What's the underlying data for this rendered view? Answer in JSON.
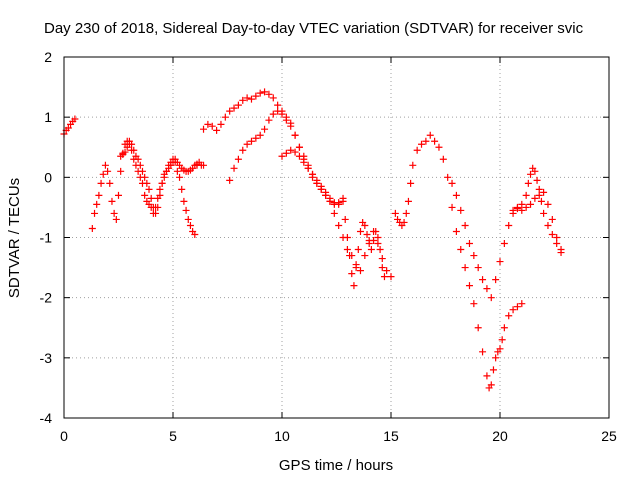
{
  "chart_data": {
    "type": "scatter",
    "title": "Day 230 of 2018, Sidereal Day-to-day VTEC variation (SDTVAR) for receiver svic",
    "xlabel": "GPS time / hours",
    "ylabel": "SDTVAR / TECUs",
    "xlim": [
      0,
      25
    ],
    "ylim": [
      -4,
      2
    ],
    "xticks": [
      "0",
      "5",
      "10",
      "15",
      "20",
      "25"
    ],
    "yticks": [
      "2",
      "1",
      "0",
      "-1",
      "-2",
      "-3",
      "-4"
    ],
    "grid": true,
    "marker": "plus",
    "series": [
      {
        "name": "SDTVAR",
        "color": "#ff0000",
        "x": [
          0.0,
          0.1,
          0.2,
          0.3,
          0.4,
          0.5,
          1.3,
          1.4,
          1.5,
          1.6,
          1.7,
          1.8,
          1.9,
          2.0,
          2.1,
          2.2,
          2.3,
          2.4,
          2.5,
          2.6,
          2.7,
          2.8,
          2.9,
          3.0,
          3.1,
          3.2,
          3.3,
          3.4,
          3.5,
          3.6,
          3.7,
          3.8,
          3.9,
          4.0,
          4.1,
          4.2,
          4.3,
          4.4,
          4.5,
          4.6,
          4.7,
          4.8,
          4.9,
          5.0,
          5.1,
          5.2,
          5.3,
          5.4,
          5.5,
          5.6,
          5.7,
          5.8,
          5.9,
          6.0,
          6.1,
          2.6,
          2.7,
          2.8,
          2.9,
          3.0,
          3.1,
          3.2,
          3.3,
          3.4,
          3.5,
          3.6,
          3.7,
          3.8,
          3.9,
          4.0,
          4.1,
          4.2,
          4.3,
          4.4,
          4.5,
          4.6,
          4.7,
          4.8,
          4.9,
          5.0,
          5.1,
          5.2,
          5.3,
          5.4,
          5.5,
          5.6,
          5.7,
          5.8,
          5.9,
          6.0,
          6.1,
          6.2,
          6.3,
          6.4,
          6.4,
          6.6,
          6.8,
          7.0,
          7.2,
          7.4,
          7.6,
          7.8,
          8.0,
          8.2,
          8.4,
          8.6,
          8.8,
          9.0,
          9.2,
          9.4,
          9.6,
          9.8,
          10.0,
          10.2,
          10.4,
          10.6,
          10.8,
          11.0,
          11.2,
          11.4,
          11.6,
          11.8,
          12.0,
          12.2,
          12.4,
          12.6,
          12.8,
          7.6,
          7.8,
          8.0,
          8.2,
          8.4,
          8.6,
          8.8,
          9.0,
          9.2,
          9.4,
          9.6,
          9.8,
          10.0,
          10.2,
          10.4,
          10.6,
          10.8,
          11.0,
          11.2,
          11.4,
          11.6,
          11.8,
          12.0,
          12.2,
          12.4,
          12.6,
          12.8,
          13.0,
          13.2,
          13.4,
          13.6,
          13.8,
          14.0,
          14.2,
          14.4,
          14.6,
          14.8,
          15.0,
          10.0,
          10.2,
          10.4,
          10.6,
          10.8,
          11.0,
          11.2,
          11.4,
          11.6,
          11.8,
          12.0,
          12.2,
          12.4,
          12.6,
          12.8,
          12.9,
          13.0,
          13.1,
          13.2,
          13.3,
          13.4,
          13.5,
          13.6,
          13.7,
          13.8,
          13.9,
          14.0,
          14.1,
          14.2,
          14.3,
          14.4,
          14.5,
          14.6,
          14.7,
          15.2,
          15.3,
          15.4,
          15.5,
          15.6,
          15.7,
          15.8,
          15.9,
          16.0,
          16.2,
          16.4,
          16.6,
          16.8,
          17.0,
          17.2,
          17.4,
          17.6,
          17.8,
          18.0,
          18.2,
          18.4,
          18.6,
          18.8,
          19.0,
          19.2,
          19.4,
          19.5,
          19.6,
          19.7,
          19.8,
          19.9,
          20.0,
          20.1,
          20.2,
          20.4,
          20.6,
          20.8,
          21.0,
          17.8,
          18.0,
          18.2,
          18.4,
          18.6,
          18.8,
          19.0,
          19.2,
          19.4,
          19.6,
          19.8,
          20.0,
          20.2,
          20.4,
          20.6,
          20.8,
          21.0,
          21.2,
          21.3,
          21.4,
          21.5,
          21.6,
          21.7,
          21.8,
          21.9,
          22.0,
          22.2,
          22.4,
          22.6,
          22.8,
          20.6,
          20.8,
          21.0,
          21.2,
          21.4,
          21.6,
          21.8,
          22.0,
          22.2,
          22.4,
          22.6,
          22.8
        ],
        "y": [
          0.72,
          0.78,
          0.82,
          0.88,
          0.93,
          0.97,
          -0.85,
          -0.6,
          -0.45,
          -0.3,
          -0.1,
          0.05,
          0.2,
          0.1,
          -0.1,
          -0.4,
          -0.6,
          -0.7,
          -0.3,
          0.1,
          0.4,
          0.55,
          0.6,
          0.55,
          0.45,
          0.3,
          0.2,
          0.1,
          0.0,
          -0.1,
          -0.3,
          -0.4,
          -0.45,
          -0.5,
          -0.6,
          -0.5,
          -0.35,
          -0.2,
          -0.1,
          0.0,
          0.1,
          0.2,
          0.25,
          0.3,
          0.25,
          0.1,
          0.0,
          -0.2,
          -0.4,
          -0.55,
          -0.7,
          -0.8,
          -0.9,
          -0.95,
          0.2,
          0.35,
          0.38,
          0.42,
          0.5,
          0.6,
          0.55,
          0.45,
          0.35,
          0.3,
          0.2,
          0.1,
          0.0,
          -0.1,
          -0.2,
          -0.35,
          -0.5,
          -0.6,
          -0.5,
          -0.3,
          -0.1,
          0.05,
          0.1,
          0.15,
          0.2,
          0.25,
          0.3,
          0.25,
          0.2,
          0.15,
          0.12,
          0.1,
          0.1,
          0.12,
          0.15,
          0.2,
          0.22,
          0.25,
          0.2,
          0.2,
          0.8,
          0.88,
          0.85,
          0.78,
          0.88,
          1.0,
          1.1,
          1.15,
          1.2,
          1.28,
          1.32,
          1.3,
          1.35,
          1.4,
          1.42,
          1.38,
          1.32,
          1.2,
          1.1,
          1.0,
          0.9,
          0.7,
          0.5,
          0.35,
          0.2,
          0.05,
          -0.1,
          -0.2,
          -0.3,
          -0.4,
          -0.45,
          -0.42,
          -0.35,
          -0.05,
          0.15,
          0.3,
          0.45,
          0.55,
          0.6,
          0.65,
          0.7,
          0.8,
          0.95,
          1.05,
          1.1,
          1.05,
          0.95,
          0.85,
          0.7,
          0.5,
          0.3,
          0.15,
          0.0,
          -0.1,
          -0.2,
          -0.3,
          -0.4,
          -0.6,
          -0.8,
          -1.0,
          -1.2,
          -1.3,
          -1.45,
          -1.55,
          -1.3,
          -1.05,
          -0.9,
          -1.1,
          -1.35,
          -1.55,
          -1.65,
          0.35,
          0.4,
          0.45,
          0.42,
          0.35,
          0.25,
          0.15,
          0.05,
          -0.05,
          -0.15,
          -0.25,
          -0.35,
          -0.42,
          -0.45,
          -0.4,
          -0.7,
          -1.0,
          -1.3,
          -1.6,
          -1.8,
          -1.5,
          -1.2,
          -0.9,
          -0.75,
          -0.8,
          -0.95,
          -1.1,
          -1.2,
          -1.05,
          -0.9,
          -1.0,
          -1.2,
          -1.5,
          -1.65,
          -0.6,
          -0.7,
          -0.75,
          -0.8,
          -0.75,
          -0.6,
          -0.4,
          -0.1,
          0.2,
          0.45,
          0.55,
          0.6,
          0.7,
          0.6,
          0.5,
          0.3,
          0.0,
          -0.5,
          -0.9,
          -1.2,
          -1.5,
          -1.8,
          -2.1,
          -2.5,
          -2.9,
          -3.3,
          -3.5,
          -3.45,
          -3.2,
          -3.0,
          -2.9,
          -2.85,
          -2.7,
          -2.5,
          -2.3,
          -2.2,
          -2.15,
          -2.1,
          -0.1,
          -0.3,
          -0.55,
          -0.8,
          -1.1,
          -1.3,
          -1.5,
          -1.7,
          -1.85,
          -2.0,
          -1.7,
          -1.4,
          -1.1,
          -0.8,
          -0.6,
          -0.5,
          -0.45,
          -0.3,
          -0.1,
          0.05,
          0.15,
          0.1,
          -0.05,
          -0.2,
          -0.4,
          -0.6,
          -0.8,
          -0.95,
          -1.1,
          -1.25,
          -0.55,
          -0.52,
          -0.55,
          -0.5,
          -0.45,
          -0.35,
          -0.3,
          -0.25,
          -0.45,
          -0.7,
          -1.0,
          -1.2
        ]
      }
    ]
  }
}
